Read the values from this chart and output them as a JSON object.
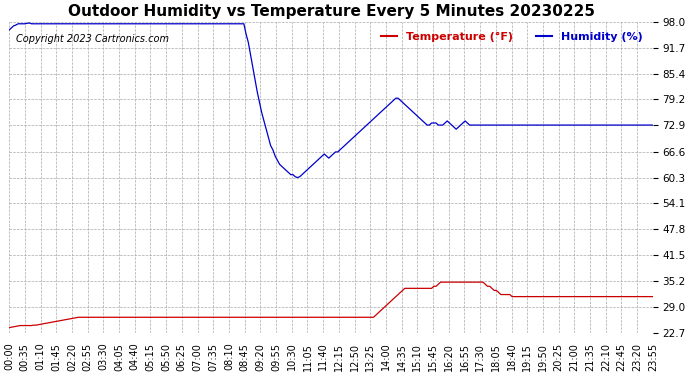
{
  "title": "Outdoor Humidity vs Temperature Every 5 Minutes 20230225",
  "copyright_text": "Copyright 2023 Cartronics.com",
  "legend_temp": "Temperature (°F)",
  "legend_hum": "Humidity (%)",
  "yticks": [
    22.7,
    29.0,
    35.2,
    41.5,
    47.8,
    54.1,
    60.3,
    66.6,
    72.9,
    79.2,
    85.4,
    91.7,
    98.0
  ],
  "ymin": 22.7,
  "ymax": 98.0,
  "bg_color": "#ffffff",
  "grid_color": "#aaaaaa",
  "blue_color": "#0000cc",
  "red_color": "#cc0000",
  "title_fontsize": 11,
  "tick_fontsize": 7.5,
  "xtick_labels": [
    "00:00",
    "00:35",
    "01:10",
    "01:45",
    "02:20",
    "02:55",
    "03:30",
    "04:05",
    "04:40",
    "05:15",
    "05:50",
    "06:25",
    "07:00",
    "07:35",
    "08:10",
    "08:45",
    "09:20",
    "09:55",
    "10:30",
    "11:05",
    "11:40",
    "12:15",
    "12:50",
    "13:25",
    "14:00",
    "14:35",
    "15:10",
    "15:45",
    "16:20",
    "16:55",
    "17:30",
    "18:05",
    "18:40",
    "19:15",
    "19:50",
    "20:25",
    "21:00",
    "21:35",
    "22:10",
    "22:45",
    "23:20",
    "23:55"
  ],
  "humidity_data": [
    96.0,
    96.5,
    97.0,
    97.2,
    97.5,
    97.5,
    97.5,
    97.5,
    97.6,
    97.7,
    97.5,
    97.5,
    97.5,
    97.5,
    97.5,
    97.5,
    97.5,
    97.5,
    97.5,
    97.5,
    97.5,
    97.5,
    97.5,
    97.5,
    97.5,
    97.5,
    97.5,
    97.5,
    97.5,
    97.5,
    97.5,
    97.5,
    97.5,
    97.5,
    97.5,
    97.5,
    97.5,
    97.5,
    97.5,
    97.5,
    97.5,
    97.5,
    97.5,
    97.5,
    97.5,
    97.5,
    97.5,
    97.5,
    97.5,
    97.5,
    97.5,
    97.5,
    97.5,
    97.5,
    97.5,
    97.5,
    97.5,
    97.5,
    97.5,
    97.5,
    97.5,
    97.5,
    97.5,
    97.5,
    97.5,
    97.5,
    97.5,
    97.5,
    97.5,
    97.5,
    97.5,
    97.5,
    97.5,
    97.5,
    97.5,
    97.5,
    97.5,
    97.5,
    97.5,
    97.5,
    97.5,
    97.5,
    97.5,
    97.5,
    97.5,
    97.5,
    97.5,
    97.5,
    97.5,
    97.5,
    97.5,
    97.5,
    97.5,
    97.5,
    97.5,
    97.5,
    97.5,
    97.5,
    97.5,
    97.5,
    97.5,
    97.5,
    97.5,
    97.5,
    97.5,
    97.5,
    95.0,
    93.0,
    90.0,
    87.0,
    84.0,
    81.0,
    78.5,
    76.0,
    74.0,
    72.0,
    70.0,
    68.0,
    67.0,
    65.5,
    64.5,
    63.5,
    63.0,
    62.5,
    62.0,
    61.5,
    61.0,
    61.0,
    60.5,
    60.3,
    60.5,
    61.0,
    61.5,
    62.0,
    62.5,
    63.0,
    63.5,
    64.0,
    64.5,
    65.0,
    65.5,
    66.0,
    65.5,
    65.0,
    65.5,
    66.0,
    66.5,
    66.5,
    67.0,
    67.5,
    68.0,
    68.5,
    69.0,
    69.5,
    70.0,
    70.5,
    71.0,
    71.5,
    72.0,
    72.5,
    73.0,
    73.5,
    74.0,
    74.5,
    75.0,
    75.5,
    76.0,
    76.5,
    77.0,
    77.5,
    78.0,
    78.5,
    79.0,
    79.5,
    79.5,
    79.0,
    78.5,
    78.0,
    77.5,
    77.0,
    76.5,
    76.0,
    75.5,
    75.0,
    74.5,
    74.0,
    73.5,
    73.0,
    73.0,
    73.5,
    73.5,
    73.5,
    73.0,
    73.0,
    73.0,
    73.5,
    74.0,
    73.5,
    73.0,
    72.5,
    72.0,
    72.5,
    73.0,
    73.5,
    74.0,
    73.5,
    73.0,
    73.0,
    73.0,
    73.0,
    73.0,
    73.0,
    73.0,
    73.0,
    73.0,
    73.0,
    73.0,
    73.0,
    73.0,
    73.0,
    73.0,
    73.0,
    73.0,
    73.0,
    73.0,
    73.0,
    73.0,
    73.0,
    73.0,
    73.0,
    73.0,
    73.0,
    73.0,
    73.0,
    73.0,
    73.0,
    73.0,
    73.0,
    73.0,
    73.0,
    73.0,
    73.0,
    73.0,
    73.0,
    73.0,
    73.0,
    73.0,
    73.0,
    73.0,
    73.0,
    73.0,
    73.0,
    73.0,
    73.0,
    73.0,
    73.0,
    73.0,
    73.0,
    73.0,
    73.0,
    73.0,
    73.0,
    73.0,
    73.0,
    73.0,
    73.0,
    73.0,
    73.0,
    73.0,
    73.0,
    73.0,
    73.0,
    73.0,
    73.0,
    73.0,
    73.0,
    73.0,
    73.0,
    73.0,
    73.0,
    73.0,
    73.0,
    73.0,
    73.0,
    73.0,
    73.0,
    73.0,
    73.0,
    73.0,
    73.0,
    73.0
  ],
  "temperature_data": [
    24.0,
    24.1,
    24.2,
    24.3,
    24.4,
    24.5,
    24.5,
    24.5,
    24.5,
    24.5,
    24.5,
    24.6,
    24.6,
    24.7,
    24.8,
    24.9,
    25.0,
    25.1,
    25.2,
    25.3,
    25.4,
    25.5,
    25.6,
    25.7,
    25.8,
    25.9,
    26.0,
    26.1,
    26.2,
    26.3,
    26.4,
    26.5,
    26.5,
    26.5,
    26.5,
    26.5,
    26.5,
    26.5,
    26.5,
    26.5,
    26.5,
    26.5,
    26.5,
    26.5,
    26.5,
    26.5,
    26.5,
    26.5,
    26.5,
    26.5,
    26.5,
    26.5,
    26.5,
    26.5,
    26.5,
    26.5,
    26.5,
    26.5,
    26.5,
    26.5,
    26.5,
    26.5,
    26.5,
    26.5,
    26.5,
    26.5,
    26.5,
    26.5,
    26.5,
    26.5,
    26.5,
    26.5,
    26.5,
    26.5,
    26.5,
    26.5,
    26.5,
    26.5,
    26.5,
    26.5,
    26.5,
    26.5,
    26.5,
    26.5,
    26.5,
    26.5,
    26.5,
    26.5,
    26.5,
    26.5,
    26.5,
    26.5,
    26.5,
    26.5,
    26.5,
    26.5,
    26.5,
    26.5,
    26.5,
    26.5,
    26.5,
    26.5,
    26.5,
    26.5,
    26.5,
    26.5,
    26.5,
    26.5,
    26.5,
    26.5,
    26.5,
    26.5,
    26.5,
    26.5,
    26.5,
    26.5,
    26.5,
    26.5,
    26.5,
    26.5,
    26.5,
    26.5,
    26.5,
    26.5,
    26.5,
    26.5,
    26.5,
    26.5,
    26.5,
    26.5,
    26.5,
    26.5,
    26.5,
    26.5,
    26.5,
    26.5,
    26.5,
    26.5,
    26.5,
    26.5,
    26.5,
    26.5,
    26.5,
    26.5,
    26.5,
    26.5,
    26.5,
    26.5,
    26.5,
    26.5,
    26.5,
    26.5,
    26.5,
    26.5,
    26.5,
    26.5,
    26.5,
    26.5,
    26.5,
    26.5,
    26.5,
    26.5,
    26.5,
    26.5,
    27.0,
    27.5,
    28.0,
    28.5,
    29.0,
    29.5,
    30.0,
    30.5,
    31.0,
    31.5,
    32.0,
    32.5,
    33.0,
    33.5,
    33.5,
    33.5,
    33.5,
    33.5,
    33.5,
    33.5,
    33.5,
    33.5,
    33.5,
    33.5,
    33.5,
    33.5,
    34.0,
    34.0,
    34.5,
    35.0,
    35.0,
    35.0,
    35.0,
    35.0,
    35.0,
    35.0,
    35.0,
    35.0,
    35.0,
    35.0,
    35.0,
    35.0,
    35.0,
    35.0,
    35.0,
    35.0,
    35.0,
    35.0,
    35.0,
    34.5,
    34.0,
    34.0,
    33.5,
    33.0,
    33.0,
    32.5,
    32.0,
    32.0,
    32.0,
    32.0,
    32.0,
    31.5,
    31.5,
    31.5,
    31.5,
    31.5,
    31.5,
    31.5,
    31.5,
    31.5,
    31.5,
    31.5,
    31.5,
    31.5,
    31.5,
    31.5,
    31.5,
    31.5,
    31.5,
    31.5,
    31.5,
    31.5,
    31.5,
    31.5,
    31.5,
    31.5,
    31.5,
    31.5,
    31.5,
    31.5,
    31.5,
    31.5,
    31.5,
    31.5,
    31.5,
    31.5,
    31.5,
    31.5,
    31.5,
    31.5,
    31.5,
    31.5,
    31.5,
    31.5,
    31.5,
    31.5,
    31.5,
    31.5,
    31.5,
    31.5,
    31.5,
    31.5,
    31.5,
    31.5,
    31.5,
    31.5,
    31.5,
    31.5,
    31.5,
    31.5,
    31.5,
    31.5,
    31.5,
    31.5,
    31.5,
    31.5,
    31.5,
    31.5,
    31.5,
    31.5
  ]
}
